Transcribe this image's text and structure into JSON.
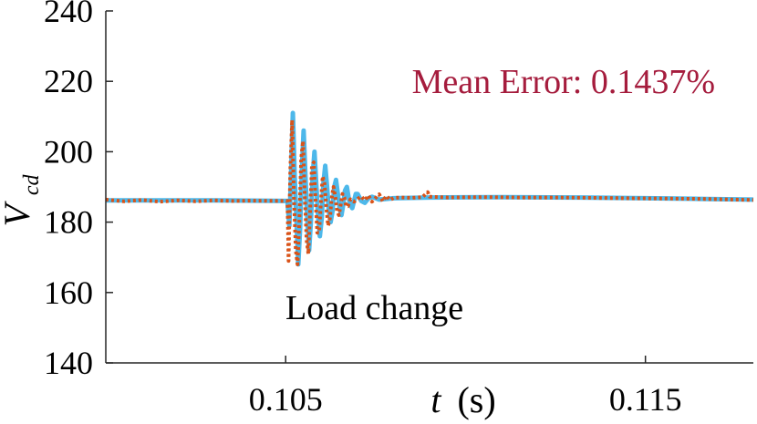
{
  "chart_data": {
    "type": "line",
    "xlabel": {
      "var": "t",
      "unit": "(s)"
    },
    "ylabel": {
      "base": "V",
      "sub": "cd"
    },
    "xlim": [
      0.1,
      0.118
    ],
    "ylim": [
      140,
      240
    ],
    "xticks": [
      0.105,
      0.115
    ],
    "xtick_labels": [
      "0.105",
      "0.115"
    ],
    "yticks": [
      140,
      160,
      180,
      200,
      220,
      240
    ],
    "ytick_labels": [
      "140",
      "160",
      "180",
      "200",
      "220",
      "240"
    ],
    "annotations": [
      {
        "text": "Mean Error: 0.1437%",
        "color": "#a51c3d"
      },
      {
        "text": "Load change",
        "color": "#000000"
      }
    ],
    "series": [
      {
        "color": "#4db8ea",
        "style": "solid",
        "points": [
          [
            0.1,
            186.2
          ],
          [
            0.103,
            186.2
          ],
          [
            0.10505,
            186.0
          ],
          [
            0.1051,
            179
          ],
          [
            0.10515,
            193
          ],
          [
            0.1052,
            211
          ],
          [
            0.10525,
            193
          ],
          [
            0.1053,
            180
          ],
          [
            0.10535,
            168
          ],
          [
            0.1054,
            178
          ],
          [
            0.10545,
            195
          ],
          [
            0.1055,
            206
          ],
          [
            0.10555,
            193
          ],
          [
            0.1056,
            181
          ],
          [
            0.10565,
            172
          ],
          [
            0.1057,
            180
          ],
          [
            0.10575,
            193
          ],
          [
            0.1058,
            200
          ],
          [
            0.10585,
            191
          ],
          [
            0.1059,
            182
          ],
          [
            0.10595,
            176
          ],
          [
            0.106,
            181
          ],
          [
            0.10605,
            191
          ],
          [
            0.1061,
            196
          ],
          [
            0.10615,
            190
          ],
          [
            0.1062,
            183
          ],
          [
            0.10625,
            180
          ],
          [
            0.1063,
            183
          ],
          [
            0.10635,
            190
          ],
          [
            0.1064,
            192
          ],
          [
            0.10645,
            188
          ],
          [
            0.1065,
            184
          ],
          [
            0.10655,
            182
          ],
          [
            0.1066,
            185
          ],
          [
            0.10665,
            189
          ],
          [
            0.1067,
            190
          ],
          [
            0.10675,
            187
          ],
          [
            0.1068,
            185
          ],
          [
            0.10685,
            184
          ],
          [
            0.1069,
            186
          ],
          [
            0.10695,
            188
          ],
          [
            0.107,
            188
          ],
          [
            0.1071,
            186
          ],
          [
            0.1072,
            185.5
          ],
          [
            0.1073,
            186.8
          ],
          [
            0.1074,
            187.2
          ],
          [
            0.1076,
            186.4
          ],
          [
            0.108,
            186.8
          ],
          [
            0.109,
            187.0
          ],
          [
            0.111,
            187.1
          ],
          [
            0.113,
            187.0
          ],
          [
            0.115,
            186.8
          ],
          [
            0.1165,
            186.6
          ],
          [
            0.118,
            186.4
          ]
        ]
      },
      {
        "color": "#d95319",
        "style": "dotted",
        "points": [
          [
            0.1,
            186.4
          ],
          [
            0.1005,
            185.9
          ],
          [
            0.101,
            186.3
          ],
          [
            0.1015,
            185.8
          ],
          [
            0.102,
            186.2
          ],
          [
            0.1025,
            185.9
          ],
          [
            0.103,
            186.2
          ],
          [
            0.1035,
            186.0
          ],
          [
            0.104,
            186.1
          ],
          [
            0.10505,
            186.0
          ],
          [
            0.10508,
            169
          ],
          [
            0.10513,
            195
          ],
          [
            0.10518,
            209
          ],
          [
            0.10523,
            187
          ],
          [
            0.10528,
            172
          ],
          [
            0.10533,
            168
          ],
          [
            0.10538,
            180
          ],
          [
            0.10543,
            198
          ],
          [
            0.10548,
            203
          ],
          [
            0.10553,
            188
          ],
          [
            0.10558,
            175
          ],
          [
            0.10563,
            171
          ],
          [
            0.10568,
            183
          ],
          [
            0.10573,
            196
          ],
          [
            0.10578,
            197
          ],
          [
            0.10583,
            186
          ],
          [
            0.10588,
            177
          ],
          [
            0.10593,
            177
          ],
          [
            0.10598,
            186
          ],
          [
            0.10603,
            193
          ],
          [
            0.10608,
            191
          ],
          [
            0.10613,
            184
          ],
          [
            0.10618,
            179
          ],
          [
            0.10623,
            181
          ],
          [
            0.10628,
            187
          ],
          [
            0.10633,
            190
          ],
          [
            0.10638,
            187
          ],
          [
            0.10643,
            183
          ],
          [
            0.10648,
            182
          ],
          [
            0.10653,
            185
          ],
          [
            0.10658,
            188
          ],
          [
            0.10663,
            187
          ],
          [
            0.10668,
            184.5
          ],
          [
            0.10673,
            184.5
          ],
          [
            0.1068,
            186.5
          ],
          [
            0.1069,
            185.8
          ],
          [
            0.107,
            186.6
          ],
          [
            0.1071,
            187.3
          ],
          [
            0.1072,
            186.2
          ],
          [
            0.1073,
            187.6
          ],
          [
            0.1074,
            185.8
          ],
          [
            0.1075,
            186.9
          ],
          [
            0.1076,
            187.9
          ],
          [
            0.1077,
            185.9
          ],
          [
            0.1078,
            187.5
          ],
          [
            0.1079,
            186.3
          ],
          [
            0.108,
            186.9
          ],
          [
            0.1082,
            187.0
          ],
          [
            0.1085,
            186.9
          ],
          [
            0.1088,
            187.1
          ],
          [
            0.10895,
            188.5
          ],
          [
            0.109,
            187.2
          ],
          [
            0.1095,
            187.0
          ],
          [
            0.1105,
            187.1
          ],
          [
            0.1115,
            187.0
          ],
          [
            0.1125,
            187.0
          ],
          [
            0.1135,
            186.9
          ],
          [
            0.1145,
            186.8
          ],
          [
            0.1155,
            186.7
          ],
          [
            0.1165,
            186.6
          ],
          [
            0.1175,
            186.4
          ],
          [
            0.118,
            186.3
          ]
        ]
      }
    ]
  }
}
